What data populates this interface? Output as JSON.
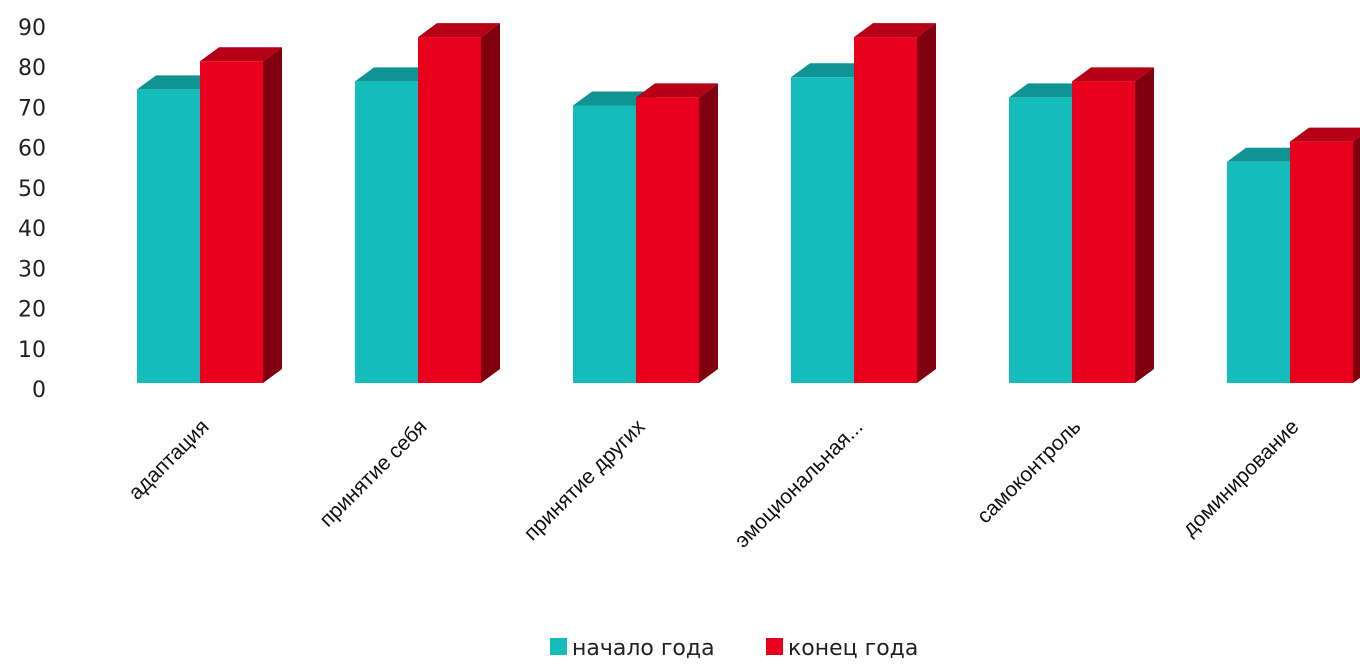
{
  "chart_data": {
    "type": "bar",
    "title": "",
    "xlabel": "",
    "ylabel": "",
    "ylim": [
      0,
      90
    ],
    "yticks": [
      "0",
      "10",
      "20",
      "30",
      "40",
      "50",
      "60",
      "70",
      "80",
      "90"
    ],
    "categories": [
      "адаптация",
      "принятие себя",
      "принятие других",
      "эмоциональная...",
      "самоконтроль",
      "доминирование"
    ],
    "series": [
      {
        "name": "начало года",
        "color": "#14bcbc",
        "values": [
          73,
          75,
          69,
          76,
          71,
          55
        ]
      },
      {
        "name": "конец года",
        "color": "#e8001c",
        "values": [
          80,
          86,
          71,
          86,
          75,
          60
        ]
      }
    ],
    "grid": false,
    "legend_position": "bottom",
    "style": "3d-columns"
  }
}
